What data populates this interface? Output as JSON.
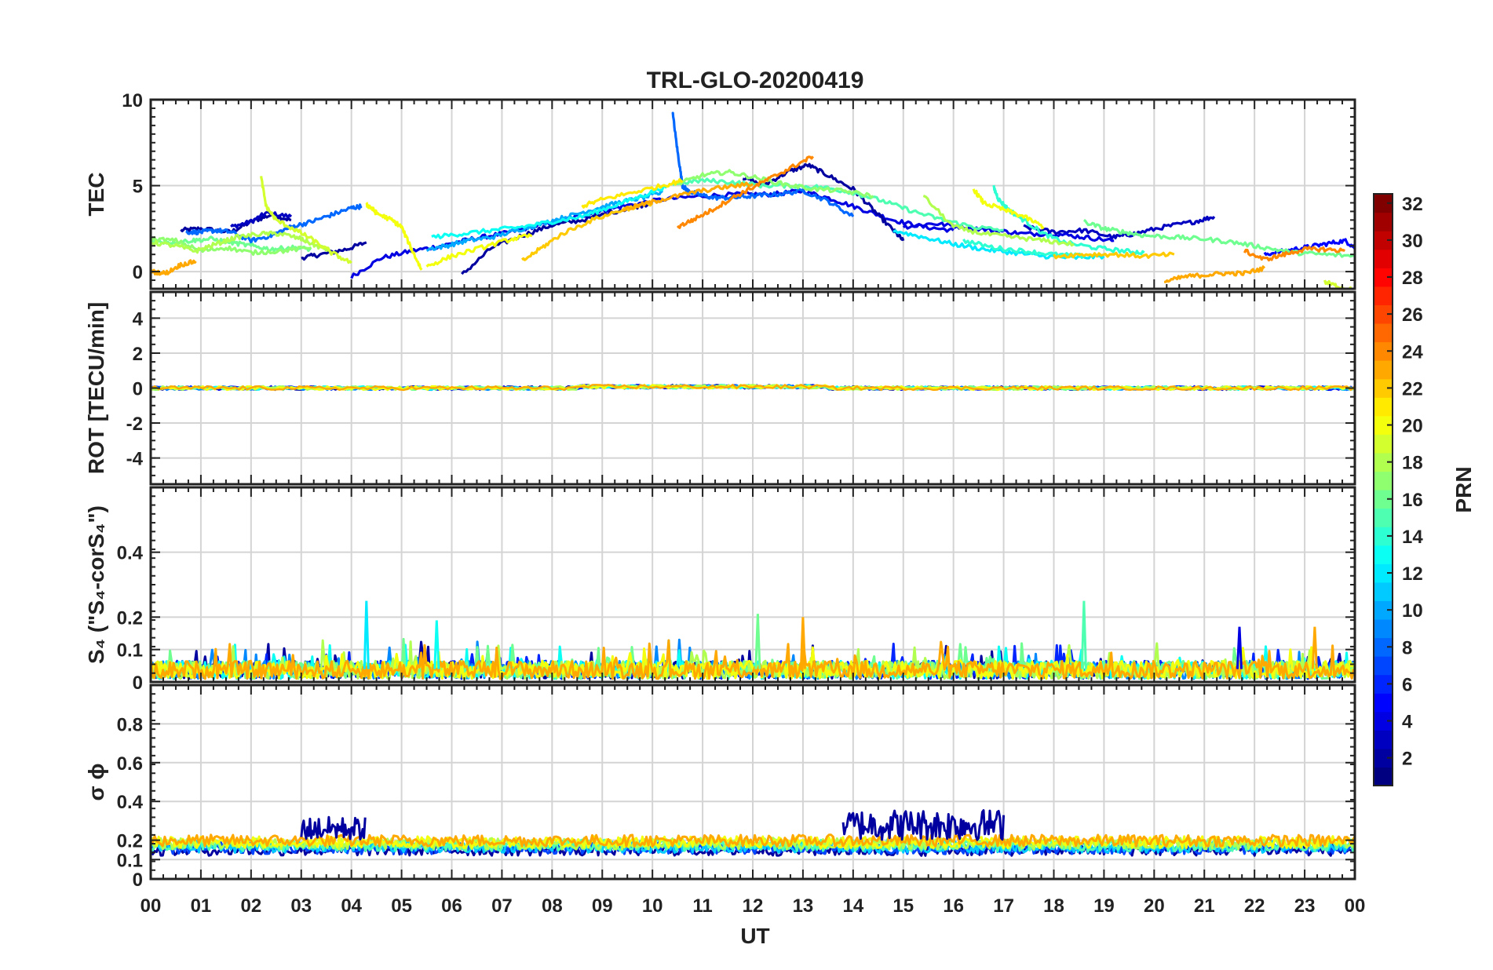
{
  "chart_data": {
    "type": "line",
    "title": "TRL-GLO-20200419",
    "xlabel": "UT",
    "x_tick_labels": [
      "00",
      "01",
      "02",
      "03",
      "04",
      "05",
      "06",
      "07",
      "08",
      "09",
      "10",
      "11",
      "12",
      "13",
      "14",
      "15",
      "16",
      "17",
      "18",
      "19",
      "20",
      "21",
      "22",
      "23",
      "00"
    ],
    "x_range": [
      0,
      24
    ],
    "panels": [
      {
        "id": "tec",
        "ylabel": "TEC",
        "ylim": [
          -1,
          10
        ],
        "y_ticks": [
          0,
          5,
          10
        ],
        "y_tick_labels": [
          "0",
          "5",
          "10"
        ],
        "mode": "tec"
      },
      {
        "id": "rot",
        "ylabel": "ROT [TECU/min]",
        "ylim": [
          -5.5,
          5.5
        ],
        "y_ticks": [
          -4,
          -2,
          0,
          2,
          4
        ],
        "y_tick_labels": [
          "-4",
          "-2",
          "0",
          "2",
          "4"
        ],
        "mode": "rot"
      },
      {
        "id": "s4",
        "ylabel": "S₄ (\"S₄-corS₄\")",
        "ylim": [
          0,
          0.6
        ],
        "y_ticks": [
          0,
          0.1,
          0.2,
          0.4
        ],
        "y_tick_labels": [
          "0",
          "0.1",
          "0.2",
          "0.4"
        ],
        "mode": "s4"
      },
      {
        "id": "sigma",
        "ylabel": "σ ϕ",
        "ylim": [
          0,
          1
        ],
        "y_ticks": [
          0,
          0.1,
          0.2,
          0.4,
          0.6,
          0.8
        ],
        "y_tick_labels": [
          "0",
          "0.1",
          "0.2",
          "0.4",
          "0.6",
          "0.8"
        ],
        "mode": "sigma"
      }
    ],
    "colorbar": {
      "label": "PRN",
      "range": [
        1,
        32
      ],
      "ticks": [
        2,
        4,
        6,
        8,
        10,
        12,
        14,
        16,
        18,
        20,
        22,
        24,
        26,
        28,
        30,
        32
      ],
      "tick_labels": [
        "2",
        "4",
        "6",
        "8",
        "10",
        "12",
        "14",
        "16",
        "18",
        "20",
        "22",
        "24",
        "26",
        "28",
        "30",
        "32"
      ],
      "colormap": "jet"
    },
    "tec_series": [
      {
        "prn": 2,
        "x": [
          0.6,
          1.0,
          1.6,
          2.0,
          2.4,
          2.8
        ],
        "y": [
          2.4,
          2.5,
          2.3,
          2.9,
          3.3,
          3.0
        ]
      },
      {
        "prn": 3,
        "x": [
          1.6,
          2.0,
          2.3,
          2.8
        ],
        "y": [
          2.6,
          2.9,
          3.4,
          3.2
        ]
      },
      {
        "prn": 2,
        "x": [
          3.0,
          3.4,
          3.9,
          4.3
        ],
        "y": [
          0.8,
          1.0,
          1.3,
          1.7
        ]
      },
      {
        "prn": 4,
        "x": [
          4.0,
          4.6,
          5.2,
          5.8,
          6.4,
          7.0,
          7.6,
          8.2,
          8.8,
          9.4,
          10.2,
          11.0,
          11.8,
          12.4,
          13.0,
          13.6,
          14.2,
          14.8,
          15.4,
          16.0
        ],
        "y": [
          -0.3,
          0.8,
          1.2,
          1.5,
          1.9,
          2.2,
          2.6,
          3.0,
          3.4,
          3.8,
          4.2,
          4.4,
          4.5,
          4.5,
          4.7,
          4.2,
          3.6,
          3.0,
          2.6,
          2.4
        ]
      },
      {
        "prn": 2,
        "x": [
          6.2,
          6.8,
          7.4,
          8.0,
          8.6,
          9.4,
          10.0
        ],
        "y": [
          -0.2,
          1.4,
          2.1,
          2.7,
          3.0,
          3.6,
          4.0
        ]
      },
      {
        "prn": 2,
        "x": [
          11.8,
          12.2,
          12.7,
          13.1,
          13.5,
          14.0,
          14.4,
          14.8,
          15.0
        ],
        "y": [
          5.5,
          5.0,
          5.8,
          6.2,
          5.6,
          4.8,
          3.6,
          2.4,
          1.8
        ]
      },
      {
        "prn": 3,
        "x": [
          17.4,
          18.0,
          18.6,
          19.2,
          19.6,
          20.2,
          20.8,
          21.2
        ],
        "y": [
          2.6,
          2.3,
          2.4,
          2.0,
          2.2,
          2.6,
          2.9,
          3.2
        ]
      },
      {
        "prn": 4,
        "x": [
          15.0,
          15.6,
          16.2,
          16.8,
          17.4,
          18.0,
          18.6,
          19.2
        ],
        "y": [
          2.6,
          2.8,
          2.6,
          2.4,
          2.2,
          2.2,
          2.0,
          1.8
        ]
      },
      {
        "prn": 5,
        "x": [
          22.2,
          22.6,
          23.0,
          23.4,
          23.8,
          24.0
        ],
        "y": [
          1.0,
          1.2,
          1.4,
          1.6,
          1.8,
          1.4
        ]
      },
      {
        "prn": 8,
        "x": [
          0.7,
          1.0,
          1.3,
          1.6,
          2.0,
          2.4,
          2.8,
          3.2,
          3.6,
          4.0,
          4.2
        ],
        "y": [
          2.3,
          2.3,
          2.4,
          2.3,
          1.8,
          2.1,
          2.6,
          2.9,
          3.3,
          3.7,
          3.8
        ]
      },
      {
        "prn": 8,
        "x": [
          10.4,
          10.5,
          10.6,
          10.7,
          10.9,
          11.2,
          11.6,
          12.0,
          12.5,
          13.0,
          13.5,
          14.0
        ],
        "y": [
          9.3,
          7.0,
          5.0,
          4.7,
          4.5,
          4.3,
          4.3,
          4.4,
          4.5,
          4.7,
          4.1,
          3.2
        ]
      },
      {
        "prn": 10,
        "x": [
          5.5,
          5.9,
          6.3,
          6.8,
          7.3,
          7.8,
          8.3,
          8.8,
          9.3,
          9.8,
          10.2
        ],
        "y": [
          1.3,
          1.5,
          1.8,
          2.0,
          2.4,
          2.8,
          3.2,
          3.6,
          4.0,
          4.3,
          4.6
        ]
      },
      {
        "prn": 12,
        "x": [
          14.8,
          15.4,
          16.0,
          16.6,
          17.2,
          17.8,
          18.4,
          19.0
        ],
        "y": [
          2.4,
          2.0,
          1.6,
          1.3,
          1.1,
          0.9,
          0.8,
          0.9
        ]
      },
      {
        "prn": 13,
        "x": [
          5.6,
          6.2,
          6.8,
          7.4,
          8.0,
          8.6,
          9.2,
          9.8,
          10.3
        ],
        "y": [
          2.0,
          2.2,
          2.4,
          2.6,
          2.9,
          3.2,
          3.8,
          4.4,
          5.0
        ]
      },
      {
        "prn": 14,
        "x": [
          16.8,
          16.9,
          17.1,
          17.4,
          17.8,
          18.2,
          18.8,
          19.4,
          19.8
        ],
        "y": [
          4.9,
          4.2,
          3.6,
          3.0,
          2.2,
          1.7,
          1.4,
          1.2,
          1.1
        ]
      },
      {
        "prn": 14,
        "x": [
          16.2,
          16.8,
          17.4,
          18.0,
          18.6
        ],
        "y": [
          1.8,
          1.4,
          1.2,
          1.0,
          0.9
        ]
      },
      {
        "prn": 15,
        "x": [
          10.4,
          11.0,
          11.6,
          12.2,
          12.8,
          13.4,
          14.0,
          14.6,
          15.2,
          15.8,
          16.4,
          17.0
        ],
        "y": [
          5.1,
          5.3,
          5.2,
          5.0,
          5.0,
          4.9,
          4.6,
          4.1,
          3.5,
          3.0,
          2.6,
          2.4
        ]
      },
      {
        "prn": 16,
        "x": [
          18.6,
          19.0,
          19.4,
          19.8,
          20.4,
          21.0,
          21.6,
          22.2,
          22.8,
          23.4,
          24.0
        ],
        "y": [
          2.9,
          2.5,
          2.3,
          2.1,
          2.0,
          1.9,
          1.7,
          1.4,
          1.1,
          1.0,
          0.9
        ]
      },
      {
        "prn": 16,
        "x": [
          0.0,
          0.4,
          0.8,
          1.2,
          1.6,
          2.0,
          2.4,
          2.8,
          3.2
        ],
        "y": [
          1.8,
          1.7,
          1.8,
          1.9,
          1.7,
          1.5,
          1.3,
          1.4,
          1.3
        ]
      },
      {
        "prn": 17,
        "x": [
          10.5,
          11.0,
          11.5,
          12.0,
          12.6,
          13.2,
          13.8,
          14.4
        ],
        "y": [
          5.1,
          5.6,
          5.8,
          5.5,
          5.1,
          4.8,
          4.7,
          4.4
        ]
      },
      {
        "prn": 17,
        "x": [
          0.0,
          0.5,
          1.0,
          1.5,
          2.0,
          2.6,
          3.2
        ],
        "y": [
          1.9,
          1.8,
          1.2,
          1.4,
          1.1,
          1.2,
          1.4
        ]
      },
      {
        "prn": 18,
        "x": [
          0.0,
          0.5,
          0.9,
          1.3,
          1.7,
          2.2,
          2.6,
          3.0,
          3.3,
          3.6
        ],
        "y": [
          1.7,
          1.5,
          1.2,
          1.6,
          2.0,
          2.2,
          2.2,
          1.9,
          1.5,
          1.2
        ]
      },
      {
        "prn": 18,
        "x": [
          15.4,
          16.0,
          16.6,
          17.2,
          17.8,
          18.4
        ],
        "y": [
          4.4,
          2.6,
          2.2,
          2.0,
          1.8,
          1.6
        ]
      },
      {
        "prn": 19,
        "x": [
          23.4,
          23.7,
          24.0
        ],
        "y": [
          -0.6,
          -0.9,
          -1.1
        ]
      },
      {
        "prn": 19,
        "x": [
          2.2,
          2.3,
          2.5,
          2.9,
          3.2,
          3.6,
          4.0
        ],
        "y": [
          5.5,
          3.8,
          3.0,
          2.4,
          1.9,
          1.1,
          0.5
        ]
      },
      {
        "prn": 20,
        "x": [
          4.3,
          4.4,
          4.5,
          4.8,
          5.0,
          5.2,
          5.4
        ],
        "y": [
          3.9,
          3.7,
          3.4,
          3.0,
          2.6,
          1.3,
          0.1
        ]
      },
      {
        "prn": 20,
        "x": [
          5.5,
          6.0,
          6.6,
          7.2,
          7.6
        ],
        "y": [
          0.3,
          0.9,
          1.4,
          1.9,
          2.1
        ]
      },
      {
        "prn": 20,
        "x": [
          16.4,
          16.6,
          17.0,
          17.4,
          17.8
        ],
        "y": [
          4.8,
          4.0,
          3.6,
          3.2,
          2.6
        ]
      },
      {
        "prn": 21,
        "x": [
          8.6,
          9.0,
          9.6,
          10.2,
          10.6
        ],
        "y": [
          3.8,
          4.2,
          4.6,
          5.0,
          5.3
        ]
      },
      {
        "prn": 22,
        "x": [
          18.0,
          18.6,
          19.2,
          19.8,
          20.4
        ],
        "y": [
          0.9,
          1.0,
          1.0,
          0.9,
          1.0
        ]
      },
      {
        "prn": 22,
        "x": [
          7.4,
          7.8,
          8.2,
          8.8,
          9.4,
          10.0
        ],
        "y": [
          0.6,
          1.4,
          2.2,
          3.0,
          3.6,
          4.0
        ]
      },
      {
        "prn": 23,
        "x": [
          20.2,
          20.6,
          21.0,
          21.4,
          21.8,
          22.2
        ],
        "y": [
          -0.6,
          -0.3,
          -0.2,
          -0.1,
          -0.1,
          0.2
        ]
      },
      {
        "prn": 23,
        "x": [
          0.0,
          0.3,
          0.6,
          0.9
        ],
        "y": [
          0.0,
          -0.1,
          0.4,
          0.6
        ]
      },
      {
        "prn": 23,
        "x": [
          9.4,
          9.8,
          10.2,
          10.8,
          11.4,
          12.0
        ],
        "y": [
          3.6,
          3.9,
          4.2,
          4.6,
          4.9,
          5.1
        ]
      },
      {
        "prn": 24,
        "x": [
          10.5,
          10.8,
          11.2,
          11.6,
          12.0,
          12.4,
          12.8,
          13.2
        ],
        "y": [
          2.6,
          3.0,
          3.6,
          4.3,
          4.9,
          5.5,
          6.1,
          6.7
        ]
      },
      {
        "prn": 24,
        "x": [
          21.8,
          22.2,
          22.6,
          23.0,
          23.4,
          23.8
        ],
        "y": [
          1.2,
          0.7,
          1.0,
          1.3,
          1.3,
          1.2
        ]
      }
    ],
    "rot_series_prns": [
      2,
      4,
      6,
      9,
      13,
      16,
      18,
      20,
      23
    ],
    "s4_series_prns": [
      2,
      6,
      9,
      13,
      16,
      18,
      20,
      23
    ],
    "sigma_series_prns": [
      2,
      7,
      11,
      15,
      18,
      20,
      23
    ],
    "s4_spikes": [
      {
        "x": 4.3,
        "y": 0.25,
        "prn": 12
      },
      {
        "x": 12.1,
        "y": 0.21,
        "prn": 16
      },
      {
        "x": 13.0,
        "y": 0.2,
        "prn": 23
      },
      {
        "x": 18.6,
        "y": 0.25,
        "prn": 15
      },
      {
        "x": 5.7,
        "y": 0.19,
        "prn": 13
      },
      {
        "x": 21.7,
        "y": 0.17,
        "prn": 4
      },
      {
        "x": 23.2,
        "y": 0.17,
        "prn": 23
      }
    ],
    "sigma_bursts": [
      {
        "x_start": 3.0,
        "x_end": 4.3,
        "y_base": 0.2,
        "y_peak": 0.32,
        "prn": 2
      },
      {
        "x_start": 13.8,
        "x_end": 17.0,
        "y_base": 0.2,
        "y_peak": 0.36,
        "prn": 2
      }
    ]
  }
}
